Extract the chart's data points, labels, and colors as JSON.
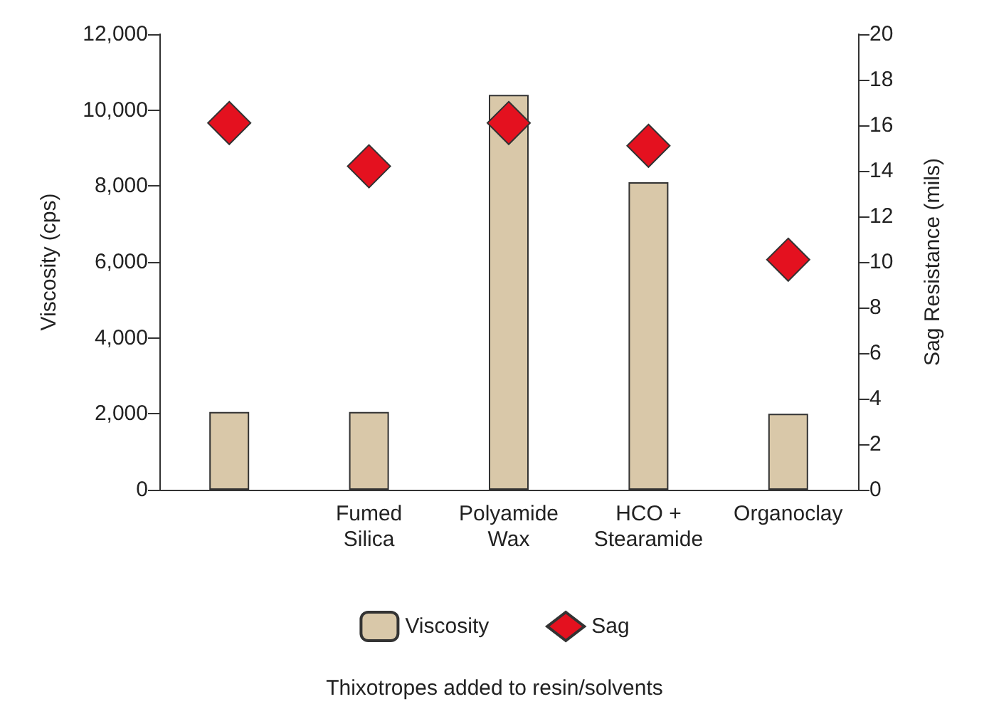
{
  "chart_data": {
    "type": "bar",
    "annotations": [
      "Thixotropes added to resin/solvents"
    ],
    "ylabel": "Viscosity (cps)",
    "y2label": "Sag Resistance (mils)",
    "categories": [
      null,
      "Fumed\nSilica",
      "Polyamide\nWax",
      "HCO +\nStearamide",
      "Organoclay"
    ],
    "series": [
      {
        "name": "Viscosity",
        "color": "#d9c8a9",
        "values": [
          2050,
          2050,
          10400,
          8100,
          2000
        ]
      },
      {
        "name": "Sag",
        "type": "scatter",
        "axis": "y2",
        "marker": "diamond",
        "color": "#e4111f",
        "values": [
          16.1,
          14.2,
          16.1,
          15.1,
          10.1
        ]
      }
    ],
    "ylim": [
      0,
      12000
    ],
    "yticks": [
      {
        "value": 0,
        "label": "0"
      },
      {
        "value": 2000,
        "label": "2,000"
      },
      {
        "value": 4000,
        "label": "4,000"
      },
      {
        "value": 6000,
        "label": "6,000"
      },
      {
        "value": 8000,
        "label": "8,000"
      },
      {
        "value": 10000,
        "label": "10,000"
      },
      {
        "value": 12000,
        "label": "12,000"
      }
    ],
    "y2lim": [
      0,
      20
    ],
    "y2ticks": [
      0,
      2,
      4,
      6,
      8,
      10,
      12,
      14,
      16,
      18,
      20
    ],
    "legend": "bottom",
    "grid": false
  }
}
